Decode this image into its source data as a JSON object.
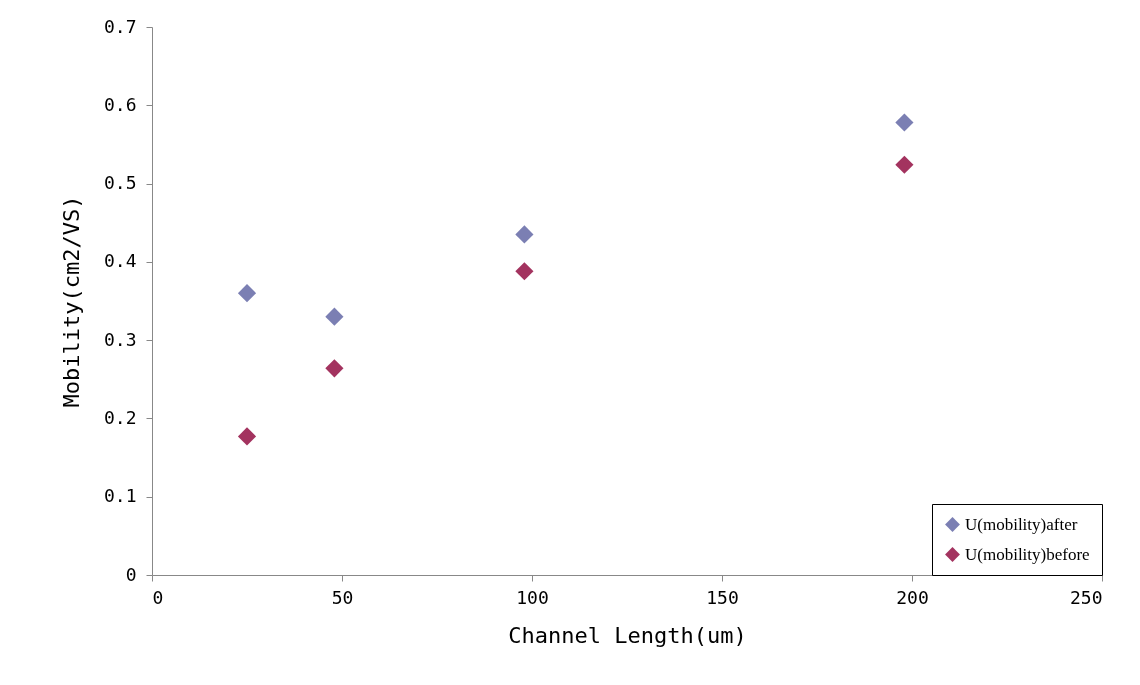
{
  "chart_data": {
    "type": "scatter",
    "xlabel": "Channel Length(um)",
    "ylabel": "Mobility(cm2/VS)",
    "xlim": [
      0,
      250
    ],
    "xticks": [
      0,
      50,
      100,
      150,
      200,
      250
    ],
    "ylim": [
      0,
      0.7
    ],
    "yticks": [
      0,
      0.1,
      0.2,
      0.3,
      0.4,
      0.5,
      0.6,
      0.7
    ],
    "grid": false,
    "legend": "bottom right",
    "marker": "diamond",
    "series": [
      {
        "name": "U(mobility)after",
        "color": "#7b7fb3",
        "x": [
          25,
          48,
          98,
          198
        ],
        "values": [
          0.36,
          0.33,
          0.435,
          0.578
        ]
      },
      {
        "name": "U(mobility)before",
        "color": "#a3335f",
        "x": [
          25,
          48,
          98,
          198
        ],
        "values": [
          0.177,
          0.264,
          0.388,
          0.524
        ]
      }
    ]
  }
}
